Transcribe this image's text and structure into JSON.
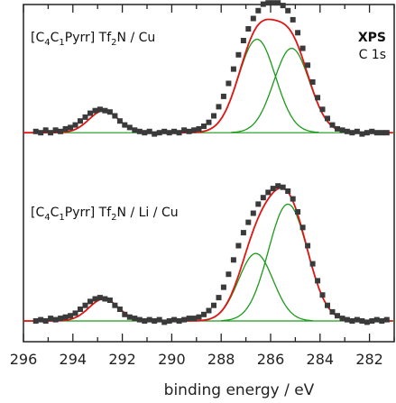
{
  "chart_data": {
    "type": "scatter",
    "xlabel": "binding energy / eV",
    "xlim": [
      296,
      281
    ],
    "x_reversed": true,
    "xticks": [
      296,
      294,
      292,
      290,
      288,
      286,
      284,
      282
    ],
    "y_units": "arbitrary (two vertically offset spectra)",
    "grid": false,
    "annotation_top_right": {
      "line1": "XPS",
      "line2": "C 1s"
    },
    "panels": [
      {
        "label": {
          "parts": [
            {
              "t": "[C",
              "sub": false
            },
            {
              "t": "4",
              "sub": true
            },
            {
              "t": "C",
              "sub": false
            },
            {
              "t": "1",
              "sub": true
            },
            {
              "t": "Pyrr] Tf",
              "sub": false
            },
            {
              "t": "2",
              "sub": true
            },
            {
              "t": "N / Cu",
              "sub": false
            }
          ]
        },
        "baseline": 0.0,
        "offset": 1.45,
        "components": [
          {
            "name": "",
            "center": 292.75,
            "height": 0.17,
            "fwhm": 1.4,
            "color": "#1a9a1a"
          },
          {
            "name": "",
            "center": 286.55,
            "height": 0.72,
            "fwhm": 1.75,
            "color": "#1a9a1a"
          },
          {
            "name": "",
            "center": 285.15,
            "height": 0.65,
            "fwhm": 1.7,
            "color": "#1a9a1a"
          }
        ],
        "fit_color": "#e01515",
        "data_points": [
          [
            295.5,
            0.01
          ],
          [
            295.3,
            0.0
          ],
          [
            295.1,
            0.02
          ],
          [
            294.9,
            0.0
          ],
          [
            294.7,
            0.02
          ],
          [
            294.5,
            0.01
          ],
          [
            294.3,
            0.03
          ],
          [
            294.1,
            0.04
          ],
          [
            293.9,
            0.06
          ],
          [
            293.7,
            0.09
          ],
          [
            293.5,
            0.12
          ],
          [
            293.3,
            0.15
          ],
          [
            293.1,
            0.17
          ],
          [
            292.9,
            0.18
          ],
          [
            292.7,
            0.17
          ],
          [
            292.5,
            0.16
          ],
          [
            292.3,
            0.13
          ],
          [
            292.1,
            0.09
          ],
          [
            291.9,
            0.06
          ],
          [
            291.7,
            0.04
          ],
          [
            291.5,
            0.02
          ],
          [
            291.3,
            0.01
          ],
          [
            291.1,
            0.0
          ],
          [
            290.9,
            0.01
          ],
          [
            290.7,
            -0.01
          ],
          [
            290.5,
            0.0
          ],
          [
            290.3,
            0.01
          ],
          [
            290.1,
            0.0
          ],
          [
            289.9,
            0.01
          ],
          [
            289.7,
            0.0
          ],
          [
            289.5,
            0.02
          ],
          [
            289.3,
            0.01
          ],
          [
            289.1,
            0.02
          ],
          [
            288.9,
            0.03
          ],
          [
            288.7,
            0.05
          ],
          [
            288.5,
            0.08
          ],
          [
            288.3,
            0.13
          ],
          [
            288.1,
            0.2
          ],
          [
            287.9,
            0.28
          ],
          [
            287.7,
            0.38
          ],
          [
            287.5,
            0.49
          ],
          [
            287.3,
            0.6
          ],
          [
            287.1,
            0.71
          ],
          [
            286.9,
            0.8
          ],
          [
            286.7,
            0.88
          ],
          [
            286.5,
            0.94
          ],
          [
            286.3,
            0.99
          ],
          [
            286.1,
            1.0
          ],
          [
            285.9,
            1.0
          ],
          [
            285.7,
            1.0
          ],
          [
            285.5,
            0.98
          ],
          [
            285.3,
            0.94
          ],
          [
            285.1,
            0.87
          ],
          [
            284.9,
            0.77
          ],
          [
            284.7,
            0.65
          ],
          [
            284.5,
            0.52
          ],
          [
            284.3,
            0.39
          ],
          [
            284.1,
            0.27
          ],
          [
            283.9,
            0.18
          ],
          [
            283.7,
            0.11
          ],
          [
            283.5,
            0.06
          ],
          [
            283.3,
            0.03
          ],
          [
            283.1,
            0.02
          ],
          [
            282.9,
            0.01
          ],
          [
            282.7,
            0.0
          ],
          [
            282.5,
            0.01
          ],
          [
            282.3,
            -0.01
          ],
          [
            282.1,
            0.0
          ],
          [
            281.9,
            0.01
          ],
          [
            281.7,
            0.0
          ],
          [
            281.5,
            0.0
          ],
          [
            281.3,
            0.0
          ]
        ]
      },
      {
        "label": {
          "parts": [
            {
              "t": "[C",
              "sub": false
            },
            {
              "t": "4",
              "sub": true
            },
            {
              "t": "C",
              "sub": false
            },
            {
              "t": "1",
              "sub": true
            },
            {
              "t": "Pyrr] Tf",
              "sub": false
            },
            {
              "t": "2",
              "sub": true
            },
            {
              "t": "N / Li / Cu",
              "sub": false
            }
          ]
        },
        "baseline": 0.0,
        "offset": 0.0,
        "components": [
          {
            "name": "",
            "center": 292.75,
            "height": 0.17,
            "fwhm": 1.4,
            "color": "#1a9a1a"
          },
          {
            "name": "",
            "center": 286.6,
            "height": 0.52,
            "fwhm": 1.65,
            "color": "#1a9a1a"
          },
          {
            "name": "",
            "center": 285.3,
            "height": 0.9,
            "fwhm": 1.85,
            "color": "#1a9a1a"
          }
        ],
        "fit_color": "#e01515",
        "data_points": [
          [
            295.5,
            0.0
          ],
          [
            295.3,
            0.01
          ],
          [
            295.1,
            0.0
          ],
          [
            294.9,
            0.02
          ],
          [
            294.7,
            0.01
          ],
          [
            294.5,
            0.02
          ],
          [
            294.3,
            0.03
          ],
          [
            294.1,
            0.04
          ],
          [
            293.9,
            0.06
          ],
          [
            293.7,
            0.09
          ],
          [
            293.5,
            0.12
          ],
          [
            293.3,
            0.15
          ],
          [
            293.1,
            0.17
          ],
          [
            292.9,
            0.18
          ],
          [
            292.7,
            0.17
          ],
          [
            292.5,
            0.16
          ],
          [
            292.3,
            0.12
          ],
          [
            292.1,
            0.09
          ],
          [
            291.9,
            0.05
          ],
          [
            291.7,
            0.03
          ],
          [
            291.5,
            0.02
          ],
          [
            291.3,
            0.01
          ],
          [
            291.1,
            0.0
          ],
          [
            290.9,
            0.01
          ],
          [
            290.7,
            0.0
          ],
          [
            290.5,
            0.01
          ],
          [
            290.3,
            -0.01
          ],
          [
            290.1,
            0.0
          ],
          [
            289.9,
            0.01
          ],
          [
            289.7,
            0.0
          ],
          [
            289.5,
            0.01
          ],
          [
            289.3,
            0.02
          ],
          [
            289.1,
            0.02
          ],
          [
            288.9,
            0.03
          ],
          [
            288.7,
            0.05
          ],
          [
            288.5,
            0.08
          ],
          [
            288.3,
            0.12
          ],
          [
            288.1,
            0.18
          ],
          [
            287.9,
            0.26
          ],
          [
            287.7,
            0.36
          ],
          [
            287.5,
            0.47
          ],
          [
            287.3,
            0.58
          ],
          [
            287.1,
            0.68
          ],
          [
            286.9,
            0.76
          ],
          [
            286.7,
            0.83
          ],
          [
            286.5,
            0.9
          ],
          [
            286.3,
            0.95
          ],
          [
            286.1,
            0.99
          ],
          [
            285.9,
            1.02
          ],
          [
            285.7,
            1.04
          ],
          [
            285.5,
            1.03
          ],
          [
            285.3,
            1.0
          ],
          [
            285.1,
            0.94
          ],
          [
            284.9,
            0.84
          ],
          [
            284.7,
            0.72
          ],
          [
            284.5,
            0.58
          ],
          [
            284.3,
            0.44
          ],
          [
            284.1,
            0.31
          ],
          [
            283.9,
            0.2
          ],
          [
            283.7,
            0.12
          ],
          [
            283.5,
            0.07
          ],
          [
            283.3,
            0.04
          ],
          [
            283.1,
            0.02
          ],
          [
            282.9,
            0.01
          ],
          [
            282.7,
            0.0
          ],
          [
            282.5,
            0.01
          ],
          [
            282.3,
            0.0
          ],
          [
            282.1,
            -0.01
          ],
          [
            281.9,
            0.0
          ],
          [
            281.7,
            0.01
          ],
          [
            281.5,
            0.0
          ],
          [
            281.3,
            0.01
          ]
        ]
      }
    ]
  }
}
